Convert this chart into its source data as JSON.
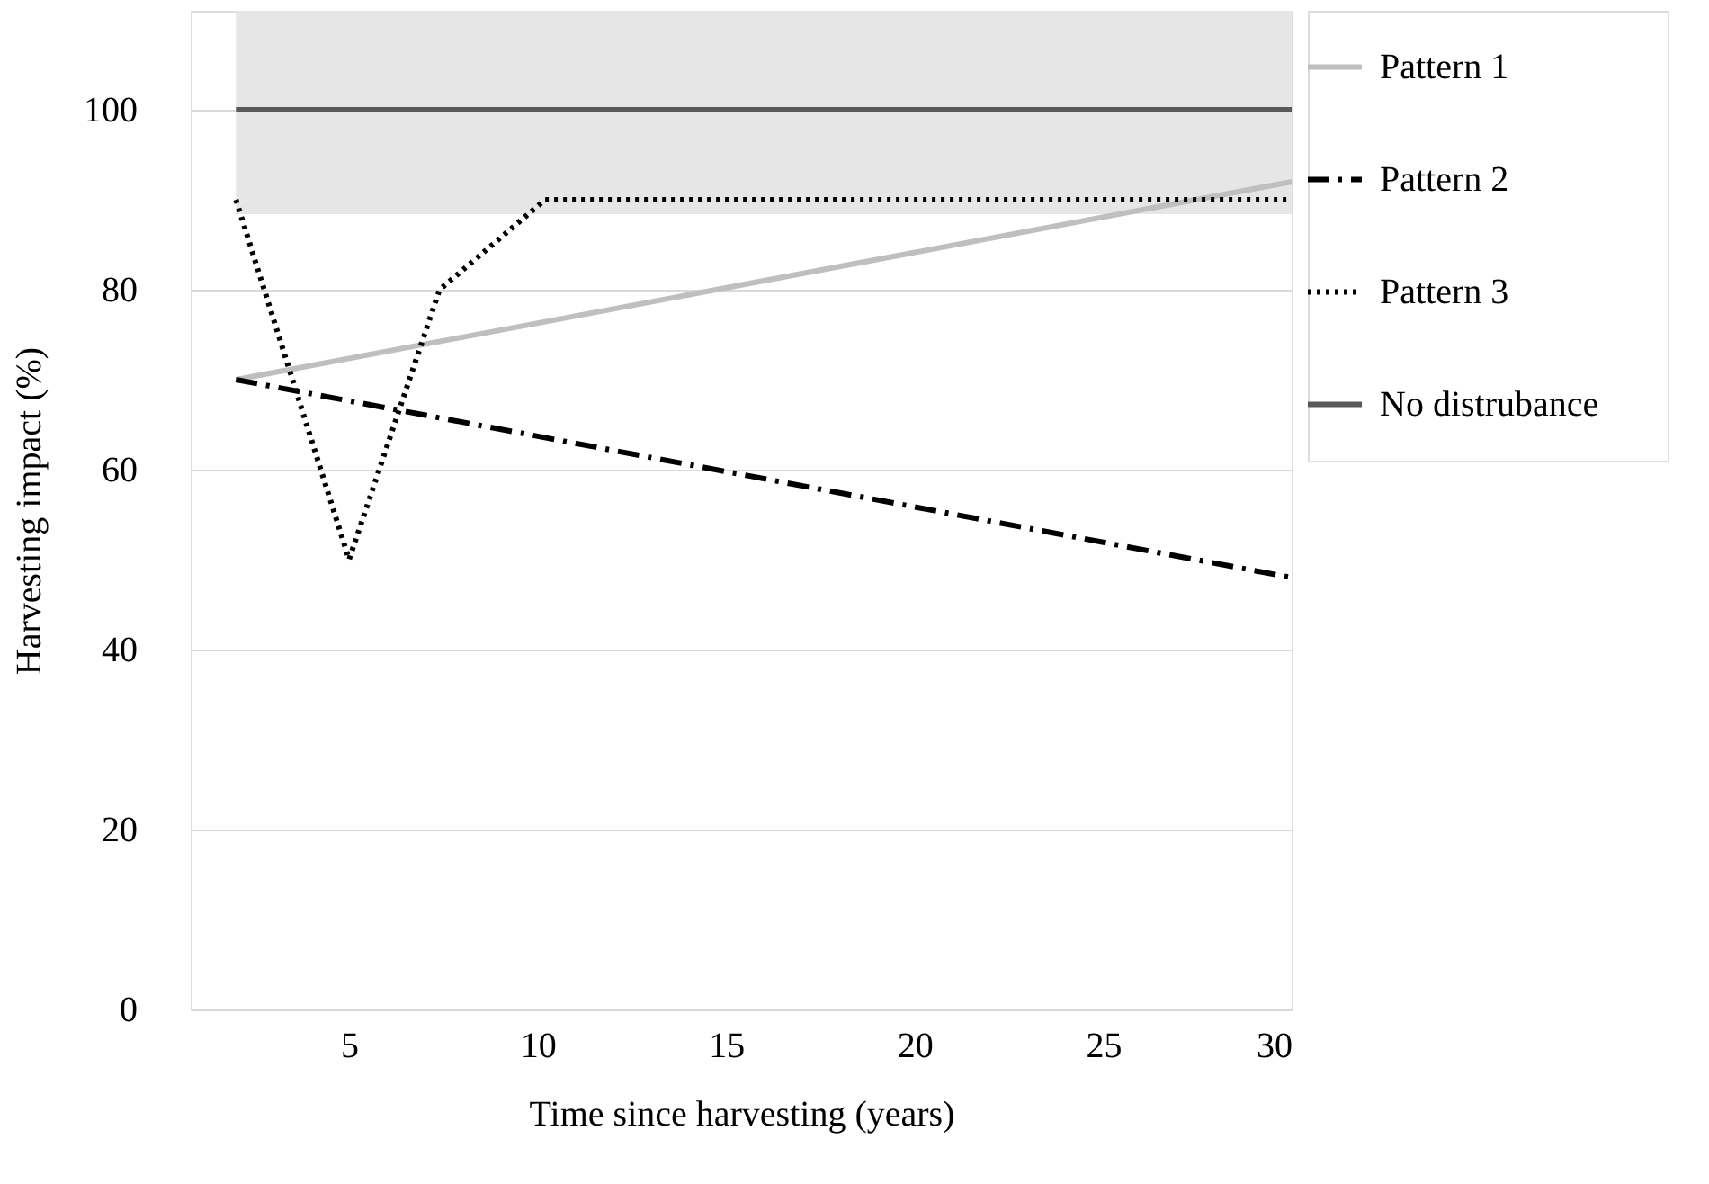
{
  "chart_data": {
    "type": "line",
    "xlabel": "Time since harvesting (years)",
    "ylabel": "Harvesting impact (%)",
    "xlim": [
      0.8,
      30
    ],
    "ylim": [
      0,
      111
    ],
    "xticks": [
      5,
      10,
      15,
      20,
      25,
      30
    ],
    "yticks": [
      0,
      20,
      40,
      60,
      80,
      100
    ],
    "grid": "y",
    "legend": "right",
    "marker": "none",
    "bands": [
      {
        "axis": "y",
        "from": 88.4,
        "to": 111,
        "color": "#e6e6e6"
      }
    ],
    "series": [
      {
        "name": "Pattern 1",
        "color": "#bfbfbf",
        "line_style": "solid",
        "x": [
          2,
          30
        ],
        "values": [
          70,
          92
        ]
      },
      {
        "name": "Pattern 2",
        "color": "#000000",
        "line_style": "dashed",
        "x": [
          2,
          30
        ],
        "values": [
          70,
          48
        ]
      },
      {
        "name": "Pattern 3",
        "color": "#000000",
        "line_style": "dotted",
        "x": [
          2,
          5,
          7.4,
          10.2,
          30
        ],
        "values": [
          90,
          50,
          80,
          90,
          90
        ]
      },
      {
        "name": "No distrubance",
        "color": "#595959",
        "line_style": "solid",
        "x": [
          2,
          30
        ],
        "values": [
          100,
          100
        ]
      }
    ]
  }
}
